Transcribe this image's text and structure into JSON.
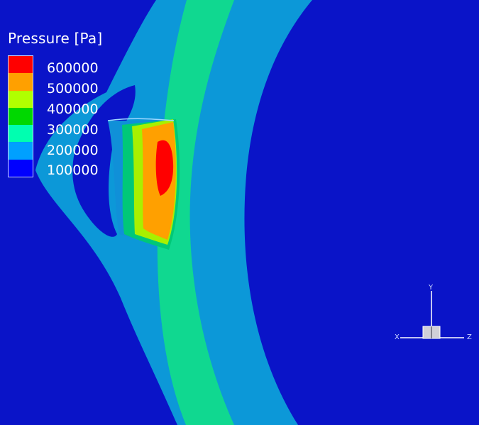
{
  "legend": {
    "title": "Pressure [Pa]",
    "bands": [
      "#ff0000",
      "#ffa000",
      "#b0ff00",
      "#00d800",
      "#00ffb0",
      "#00a0ff",
      "#0000ff"
    ],
    "labels": [
      "600000",
      "500000",
      "400000",
      "300000",
      "200000",
      "100000"
    ]
  },
  "axes": {
    "y": "Y",
    "x": "X",
    "z": "Z"
  },
  "colors": {
    "background": "#0a14c8",
    "outer_ring": "#0c98d8",
    "middle_ring": "#10d890",
    "hot_core": "#ff0000"
  }
}
